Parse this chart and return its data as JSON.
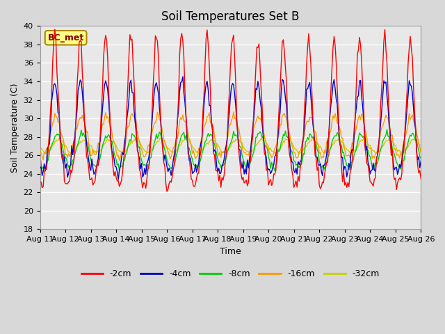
{
  "title": "Soil Temperatures Set B",
  "xlabel": "Time",
  "ylabel": "Soil Temperature (C)",
  "annotation": "BC_met",
  "ylim": [
    18,
    40
  ],
  "xlim": [
    0,
    360
  ],
  "yticks": [
    18,
    20,
    22,
    24,
    26,
    28,
    30,
    32,
    34,
    36,
    38,
    40
  ],
  "xtick_labels": [
    "Aug 11",
    "Aug 12",
    "Aug 13",
    "Aug 14",
    "Aug 15",
    "Aug 16",
    "Aug 17",
    "Aug 18",
    "Aug 19",
    "Aug 20",
    "Aug 21",
    "Aug 22",
    "Aug 23",
    "Aug 24",
    "Aug 25",
    "Aug 26"
  ],
  "xtick_positions": [
    0,
    24,
    48,
    72,
    96,
    120,
    144,
    168,
    192,
    216,
    240,
    264,
    288,
    312,
    336,
    360
  ],
  "series_colors": [
    "#ff0000",
    "#0000cc",
    "#00cc00",
    "#ff9900",
    "#cccc00"
  ],
  "series_labels": [
    "-2cm",
    "-4cm",
    "-8cm",
    "-16cm",
    "-32cm"
  ],
  "fig_bg_color": "#d8d8d8",
  "plot_bg_color": "#e8e8e8",
  "grid_color": "#ffffff",
  "title_fontsize": 12,
  "label_fontsize": 9,
  "tick_fontsize": 8
}
